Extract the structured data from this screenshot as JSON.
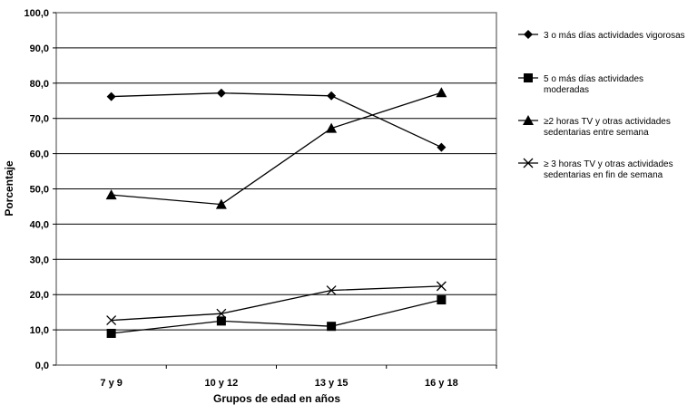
{
  "chart_data": {
    "type": "line",
    "title": "",
    "xlabel": "Grupos de edad en años",
    "ylabel": "Porcentaje",
    "ylim": [
      0,
      100
    ],
    "ytick_step": 10,
    "yticks": [
      "0,0",
      "10,0",
      "20,0",
      "30,0",
      "40,0",
      "50,0",
      "60,0",
      "70,0",
      "80,0",
      "90,0",
      "100,0"
    ],
    "grid": true,
    "legend_position": "right",
    "categories": [
      "7 y 9",
      "10 y 12",
      "13 y 15",
      "16 y 18"
    ],
    "series": [
      {
        "name": "3 o más días actividades vigorosas",
        "name_lines": [
          "3 o más días actividades vigorosas"
        ],
        "marker": "diamond",
        "values": [
          76.2,
          77.2,
          76.4,
          61.8
        ]
      },
      {
        "name": "5 o más días actividades moderadas",
        "name_lines": [
          "5 o más días actividades",
          "moderadas"
        ],
        "marker": "square",
        "values": [
          9.0,
          12.5,
          11.0,
          18.5
        ]
      },
      {
        "name": "≥2 horas TV y otras actividades sedentarias entre semana",
        "name_lines": [
          "≥2 horas TV y otras actividades",
          "sedentarias entre semana"
        ],
        "marker": "triangle",
        "values": [
          48.3,
          45.6,
          67.2,
          77.3
        ]
      },
      {
        "name": "≥ 3 horas TV y otras actividades sedentarias en fin de semana",
        "name_lines": [
          "≥ 3 horas TV y otras actividades",
          "sedentarias en fin de semana"
        ],
        "marker": "x",
        "values": [
          12.7,
          14.6,
          21.2,
          22.4
        ]
      }
    ],
    "colors": {
      "line": "#000000",
      "grid": "#000000",
      "frame": "#808080"
    }
  }
}
